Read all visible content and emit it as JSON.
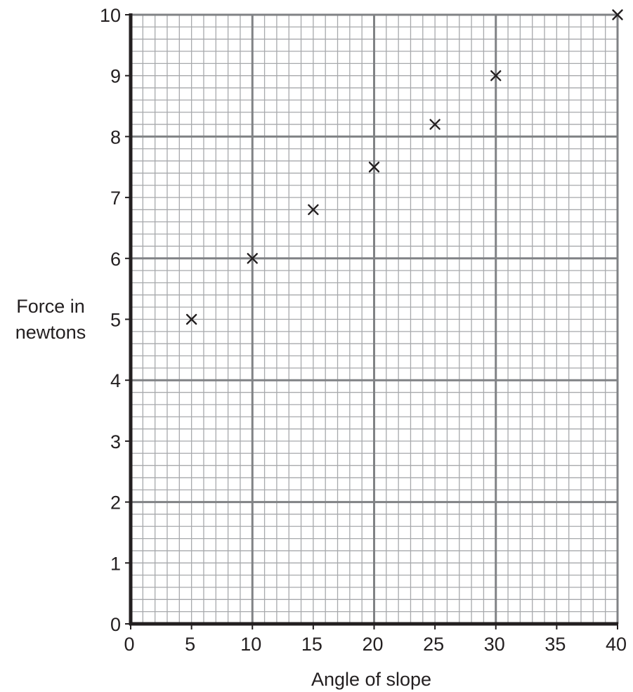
{
  "chart_data": {
    "type": "scatter",
    "title": "",
    "xlabel": "Angle of slope",
    "ylabel_lines": [
      "Force in",
      "newtons"
    ],
    "xlim": [
      0,
      40
    ],
    "ylim": [
      0,
      10
    ],
    "x_ticks": [
      0,
      5,
      10,
      15,
      20,
      25,
      30,
      35,
      40
    ],
    "y_ticks": [
      0,
      1,
      2,
      3,
      4,
      5,
      6,
      7,
      8,
      9,
      10
    ],
    "x_minor_step": 1,
    "y_minor_step": 0.2,
    "marker": "x",
    "grid": true,
    "points": [
      {
        "x": 5,
        "y": 5
      },
      {
        "x": 10,
        "y": 6
      },
      {
        "x": 15,
        "y": 6.8
      },
      {
        "x": 20,
        "y": 7.5
      },
      {
        "x": 25,
        "y": 8.2
      },
      {
        "x": 30,
        "y": 9
      },
      {
        "x": 40,
        "y": 10
      }
    ],
    "colors": {
      "minor_grid": "#a7a9ac",
      "major_grid": "#808285",
      "axis": "#231f20",
      "marker": "#231f20"
    }
  }
}
